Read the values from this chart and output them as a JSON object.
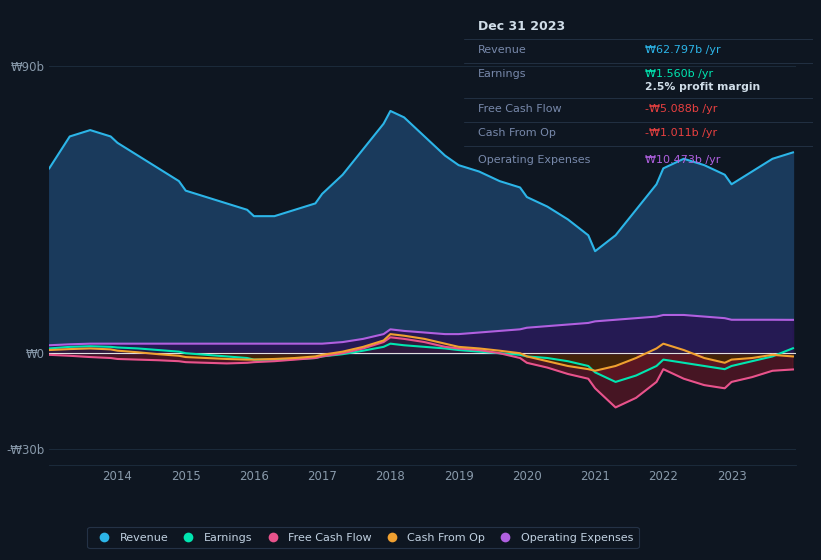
{
  "bg_color": "#0e1621",
  "plot_bg_color": "#0e1621",
  "years": [
    2013.0,
    2013.3,
    2013.6,
    2013.9,
    2014.0,
    2014.3,
    2014.6,
    2014.9,
    2015.0,
    2015.3,
    2015.6,
    2015.9,
    2016.0,
    2016.3,
    2016.6,
    2016.9,
    2017.0,
    2017.3,
    2017.6,
    2017.9,
    2018.0,
    2018.2,
    2018.5,
    2018.8,
    2019.0,
    2019.3,
    2019.6,
    2019.9,
    2020.0,
    2020.3,
    2020.6,
    2020.9,
    2021.0,
    2021.3,
    2021.6,
    2021.9,
    2022.0,
    2022.3,
    2022.6,
    2022.9,
    2023.0,
    2023.3,
    2023.6,
    2023.9
  ],
  "revenue": [
    58,
    68,
    70,
    68,
    66,
    62,
    58,
    54,
    51,
    49,
    47,
    45,
    43,
    43,
    45,
    47,
    50,
    56,
    64,
    72,
    76,
    74,
    68,
    62,
    59,
    57,
    54,
    52,
    49,
    46,
    42,
    37,
    32,
    37,
    45,
    53,
    58,
    61,
    59,
    56,
    53,
    57,
    61,
    63
  ],
  "earnings": [
    1.5,
    2.0,
    2.2,
    2.0,
    1.8,
    1.5,
    1.0,
    0.5,
    0.0,
    -0.5,
    -1.0,
    -1.5,
    -2.0,
    -2.0,
    -1.8,
    -1.5,
    -1.0,
    -0.3,
    0.8,
    2.0,
    3.0,
    2.5,
    2.0,
    1.5,
    1.0,
    0.5,
    0.0,
    -0.5,
    -1.0,
    -1.5,
    -2.5,
    -4.0,
    -6.0,
    -9.0,
    -7.0,
    -4.0,
    -2.0,
    -3.0,
    -4.0,
    -5.0,
    -4.0,
    -2.5,
    -1.0,
    1.56
  ],
  "free_cash_flow": [
    -0.5,
    -0.8,
    -1.2,
    -1.5,
    -1.8,
    -2.0,
    -2.2,
    -2.5,
    -2.8,
    -3.0,
    -3.2,
    -3.0,
    -2.8,
    -2.5,
    -2.0,
    -1.5,
    -1.0,
    0.0,
    1.5,
    3.5,
    5.0,
    4.5,
    3.5,
    2.0,
    1.5,
    1.0,
    0.0,
    -1.5,
    -3.0,
    -4.5,
    -6.5,
    -8.0,
    -11.0,
    -17.0,
    -14.0,
    -9.0,
    -5.0,
    -8.0,
    -10.0,
    -11.0,
    -9.0,
    -7.5,
    -5.5,
    -5.09
  ],
  "cash_from_op": [
    1.0,
    1.3,
    1.5,
    1.2,
    0.8,
    0.3,
    -0.3,
    -0.8,
    -1.2,
    -1.5,
    -1.8,
    -2.0,
    -2.0,
    -1.8,
    -1.5,
    -1.0,
    -0.5,
    0.5,
    2.0,
    4.0,
    6.0,
    5.5,
    4.5,
    3.0,
    2.0,
    1.5,
    0.8,
    0.0,
    -1.0,
    -2.5,
    -4.0,
    -5.0,
    -5.5,
    -4.0,
    -1.5,
    1.5,
    3.0,
    1.0,
    -1.5,
    -3.0,
    -2.0,
    -1.5,
    -0.5,
    -1.01
  ],
  "operating_expenses": [
    2.5,
    2.8,
    3.0,
    3.0,
    3.0,
    3.0,
    3.0,
    3.0,
    3.0,
    3.0,
    3.0,
    3.0,
    3.0,
    3.0,
    3.0,
    3.0,
    3.0,
    3.5,
    4.5,
    6.0,
    7.5,
    7.0,
    6.5,
    6.0,
    6.0,
    6.5,
    7.0,
    7.5,
    8.0,
    8.5,
    9.0,
    9.5,
    10.0,
    10.5,
    11.0,
    11.5,
    12.0,
    12.0,
    11.5,
    11.0,
    10.5,
    10.5,
    10.5,
    10.47
  ],
  "revenue_line_color": "#2cb5e8",
  "earnings_line_color": "#00e5b0",
  "fcf_line_color": "#e8538c",
  "cfo_line_color": "#f0a030",
  "opex_line_color": "#b060e0",
  "revenue_fill": "#1a3a5c",
  "earnings_fill_neg": "#6b1a1a",
  "fcf_fill_neg": "#5a1525",
  "cfo_fill_neg": "#3a2800",
  "cfo_fill_pos": "#4a3a00",
  "opex_fill_pos": "#2a1050",
  "zero_line_color": "#e0e0e0",
  "grid_color": "#1e2e40",
  "ylim_min": -35,
  "ylim_max": 95,
  "ytick_vals": [
    -30,
    0,
    90
  ],
  "ytick_labels": [
    "-₩30b",
    "₩0",
    "₩90b"
  ],
  "xtick_positions": [
    2014,
    2015,
    2016,
    2017,
    2018,
    2019,
    2020,
    2021,
    2022,
    2023
  ],
  "xtick_labels": [
    "2014",
    "2015",
    "2016",
    "2017",
    "2018",
    "2019",
    "2020",
    "2021",
    "2022",
    "2023"
  ],
  "annot_bg": "#080d14",
  "annot_border": "#2a3a50",
  "annot_title": "Dec 31 2023",
  "legend_labels": [
    "Revenue",
    "Earnings",
    "Free Cash Flow",
    "Cash From Op",
    "Operating Expenses"
  ],
  "legend_colors": [
    "#2cb5e8",
    "#00e5b0",
    "#e8538c",
    "#f0a030",
    "#b060e0"
  ]
}
